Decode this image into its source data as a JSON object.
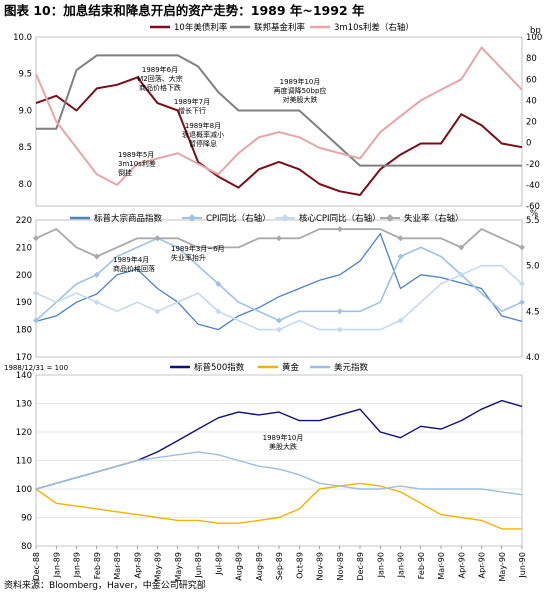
{
  "title": "图表 10：加息结束和降息开启的资产走势：1989 年~1992 年",
  "source": "资料来源：Bloomberg，Haver，中金公司研究部",
  "colors": {
    "us10y": "#7a0e18",
    "fedfunds": "#7f7f7f",
    "spread": "#e6a5a7",
    "commodity": "#4a82c4",
    "cpi": "#9ec1e6",
    "corecpi": "#c5daee",
    "unemp": "#a9a9a9",
    "sp500": "#0e0f7a",
    "gold": "#f0b400",
    "usd": "#9fbfdc",
    "grid": "#cccccc"
  },
  "x_labels": [
    "Dec-88",
    "Jan-89",
    "Jan-89",
    "Feb-89",
    "Mar-89",
    "Apr-89",
    "May-89",
    "May-89",
    "Jun-89",
    "Jul-89",
    "Aug-89",
    "Aug-89",
    "Sep-89",
    "Oct-89",
    "Nov-89",
    "Nov-89",
    "Dec-89",
    "Jan-90",
    "Jan-90",
    "Feb-90",
    "Mar-90",
    "Apr-90",
    "Apr-90",
    "May-90",
    "Jun-90"
  ],
  "chart_data": [
    {
      "type": "line",
      "panel": "top",
      "legend": [
        "10年美债利率",
        "联邦基金利率",
        "3m10s利差（右轴）"
      ],
      "y_left_ticks": [
        "10.0",
        "9.5",
        "9.0",
        "8.5",
        "8.0"
      ],
      "y_left_range": [
        7.7,
        10.0
      ],
      "y_right_unit": "bp",
      "y_right_ticks": [
        "100",
        "80",
        "60",
        "40",
        "20",
        "0",
        "-20",
        "-40",
        "-60"
      ],
      "y_right_range": [
        -60,
        100
      ],
      "series": [
        {
          "name": "10年美债利率",
          "axis": "left",
          "x": [
            0,
            1,
            2,
            3,
            4,
            5,
            6,
            7,
            8,
            9,
            10,
            11,
            12,
            13,
            14,
            15,
            16,
            17,
            18,
            19,
            20,
            21,
            22,
            23,
            24
          ],
          "y": [
            9.1,
            9.2,
            9.0,
            9.3,
            9.35,
            9.45,
            9.1,
            9.0,
            8.3,
            8.1,
            7.95,
            8.2,
            8.3,
            8.2,
            8.0,
            7.9,
            7.85,
            8.2,
            8.4,
            8.55,
            8.55,
            8.95,
            8.8,
            8.55,
            8.5
          ]
        },
        {
          "name": "联邦基金利率",
          "axis": "left",
          "x": [
            0,
            1,
            2,
            3,
            4,
            5,
            6,
            7,
            8,
            9,
            10,
            11,
            12,
            13,
            14,
            15,
            16,
            17,
            18,
            19,
            20,
            21,
            22,
            23,
            24
          ],
          "y": [
            8.75,
            8.75,
            9.55,
            9.75,
            9.75,
            9.75,
            9.75,
            9.75,
            9.6,
            9.25,
            9.0,
            9.0,
            9.0,
            9.0,
            8.75,
            8.5,
            8.25,
            8.25,
            8.25,
            8.25,
            8.25,
            8.25,
            8.25,
            8.25,
            8.25
          ]
        },
        {
          "name": "3m10s利差（右轴）",
          "axis": "right",
          "x": [
            0,
            1,
            2,
            3,
            4,
            5,
            6,
            7,
            8,
            9,
            10,
            11,
            12,
            13,
            14,
            15,
            16,
            17,
            18,
            19,
            20,
            21,
            22,
            23,
            24
          ],
          "y": [
            65,
            20,
            -5,
            -30,
            -40,
            -20,
            -15,
            -10,
            -20,
            -30,
            -10,
            5,
            10,
            5,
            -5,
            -10,
            -15,
            10,
            25,
            40,
            50,
            60,
            90,
            70,
            50
          ]
        }
      ],
      "annotations": [
        "1989年6月\nM2回落、大宗\n商品价格下跌",
        "1989年7月\n增长下行",
        "1989年8月\n衰退概率减小\n暂停降息",
        "1989年5月\n3m10s利差\n倒挂",
        "1989年10月\n再度调降50bp应\n对美股大跌"
      ]
    },
    {
      "type": "line",
      "panel": "middle",
      "legend": [
        "标普大宗商品指数",
        "CPI同比（右轴）",
        "核心CPI同比（右轴）",
        "失业率（右轴）"
      ],
      "y_left_ticks": [
        "220",
        "210",
        "200",
        "190",
        "180",
        "170"
      ],
      "y_left_range": [
        170,
        220
      ],
      "y_right_unit": "%",
      "y_right_ticks": [
        "5.5",
        "5.0",
        "4.5",
        "4.0"
      ],
      "y_right_range": [
        4.0,
        5.5
      ],
      "series": [
        {
          "name": "标普大宗商品指数",
          "axis": "left",
          "x": [
            0,
            1,
            2,
            3,
            4,
            5,
            6,
            7,
            8,
            9,
            10,
            11,
            12,
            13,
            14,
            15,
            16,
            17,
            18,
            19,
            20,
            21,
            22,
            23,
            24
          ],
          "y": [
            183,
            185,
            190,
            193,
            200,
            202,
            195,
            190,
            182,
            180,
            185,
            188,
            192,
            195,
            198,
            200,
            205,
            215,
            195,
            200,
            199,
            197,
            195,
            185,
            183
          ]
        },
        {
          "name": "CPI同比（右轴）",
          "axis": "right",
          "x": [
            0,
            1,
            2,
            3,
            4,
            5,
            6,
            7,
            8,
            9,
            10,
            11,
            12,
            13,
            14,
            15,
            16,
            17,
            18,
            19,
            20,
            21,
            22,
            23,
            24
          ],
          "y": [
            4.4,
            4.6,
            4.8,
            4.9,
            5.1,
            5.2,
            5.3,
            5.2,
            5.0,
            4.8,
            4.6,
            4.5,
            4.4,
            4.5,
            4.5,
            4.5,
            4.5,
            4.6,
            5.1,
            5.2,
            5.1,
            4.9,
            4.7,
            4.5,
            4.6
          ]
        },
        {
          "name": "核心CPI同比（右轴）",
          "axis": "right",
          "x": [
            0,
            1,
            2,
            3,
            4,
            5,
            6,
            7,
            8,
            9,
            10,
            11,
            12,
            13,
            14,
            15,
            16,
            17,
            18,
            19,
            20,
            21,
            22,
            23,
            24
          ],
          "y": [
            4.7,
            4.6,
            4.7,
            4.6,
            4.5,
            4.6,
            4.5,
            4.6,
            4.7,
            4.5,
            4.4,
            4.3,
            4.3,
            4.4,
            4.3,
            4.3,
            4.3,
            4.3,
            4.4,
            4.6,
            4.8,
            4.9,
            5.0,
            5.0,
            4.8
          ]
        },
        {
          "name": "失业率（右轴）",
          "axis": "right",
          "x": [
            0,
            1,
            2,
            3,
            4,
            5,
            6,
            7,
            8,
            9,
            10,
            11,
            12,
            13,
            14,
            15,
            16,
            17,
            18,
            19,
            20,
            21,
            22,
            23,
            24
          ],
          "y": [
            5.3,
            5.4,
            5.2,
            5.1,
            5.2,
            5.3,
            5.3,
            5.3,
            5.2,
            5.2,
            5.2,
            5.3,
            5.3,
            5.3,
            5.4,
            5.4,
            5.4,
            5.4,
            5.3,
            5.3,
            5.3,
            5.2,
            5.4,
            5.3,
            5.2
          ]
        }
      ],
      "annotations": [
        "1989年4月\n商品价格回落",
        "1989年3月~6月\n失业率抬升"
      ]
    },
    {
      "type": "line",
      "panel": "bottom",
      "index_note": "1988/12/31 = 100",
      "legend": [
        "标普500指数",
        "黄金",
        "美元指数"
      ],
      "y_ticks": [
        "140",
        "130",
        "120",
        "110",
        "100",
        "90",
        "80"
      ],
      "y_range": [
        80,
        140
      ],
      "series": [
        {
          "name": "标普500指数",
          "x": [
            0,
            1,
            2,
            3,
            4,
            5,
            6,
            7,
            8,
            9,
            10,
            11,
            12,
            13,
            14,
            15,
            16,
            17,
            18,
            19,
            20,
            21,
            22,
            23,
            24
          ],
          "y": [
            100,
            102,
            104,
            106,
            108,
            110,
            113,
            117,
            121,
            125,
            127,
            126,
            127,
            124,
            124,
            126,
            128,
            120,
            118,
            122,
            121,
            124,
            128,
            131,
            129
          ]
        },
        {
          "name": "黄金",
          "x": [
            0,
            1,
            2,
            3,
            4,
            5,
            6,
            7,
            8,
            9,
            10,
            11,
            12,
            13,
            14,
            15,
            16,
            17,
            18,
            19,
            20,
            21,
            22,
            23,
            24
          ],
          "y": [
            100,
            95,
            94,
            93,
            92,
            91,
            90,
            89,
            89,
            88,
            88,
            89,
            90,
            93,
            100,
            101,
            102,
            101,
            99,
            95,
            91,
            90,
            89,
            86,
            86
          ]
        },
        {
          "name": "美元指数",
          "x": [
            0,
            1,
            2,
            3,
            4,
            5,
            6,
            7,
            8,
            9,
            10,
            11,
            12,
            13,
            14,
            15,
            16,
            17,
            18,
            19,
            20,
            21,
            22,
            23,
            24
          ],
          "y": [
            100,
            102,
            104,
            106,
            108,
            110,
            111,
            112,
            113,
            112,
            110,
            108,
            107,
            105,
            102,
            101,
            100,
            100,
            101,
            100,
            100,
            100,
            100,
            99,
            98
          ]
        }
      ],
      "annotations": [
        "1989年10月\n美股大跌"
      ]
    }
  ]
}
